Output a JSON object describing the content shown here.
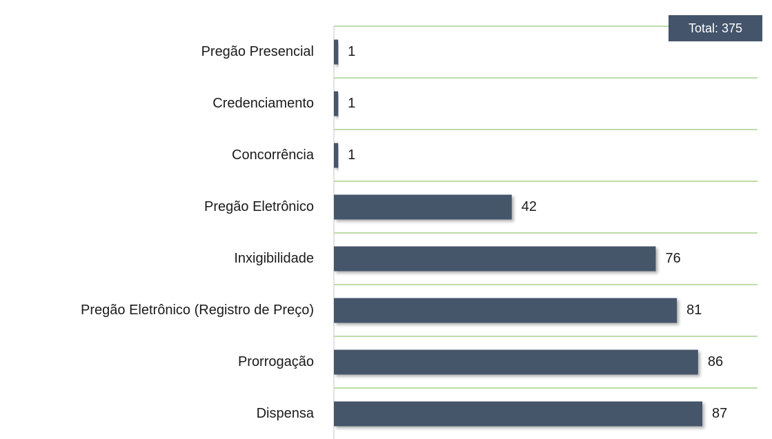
{
  "chart_data": {
    "type": "barh",
    "annotation": "Total: 375",
    "categories": [
      "Pregão Presencial",
      "Credenciamento",
      "Concorrência",
      "Pregão Eletrônico",
      "Inxigibilidade",
      "Pregão Eletrônico (Registro de Preço)",
      "Prorrogação",
      "Dispensa"
    ],
    "values": [
      1,
      1,
      1,
      42,
      76,
      81,
      86,
      87
    ],
    "color": "#44546a",
    "separator_color": "#a9d18e",
    "annotation_color": "#44546a"
  }
}
